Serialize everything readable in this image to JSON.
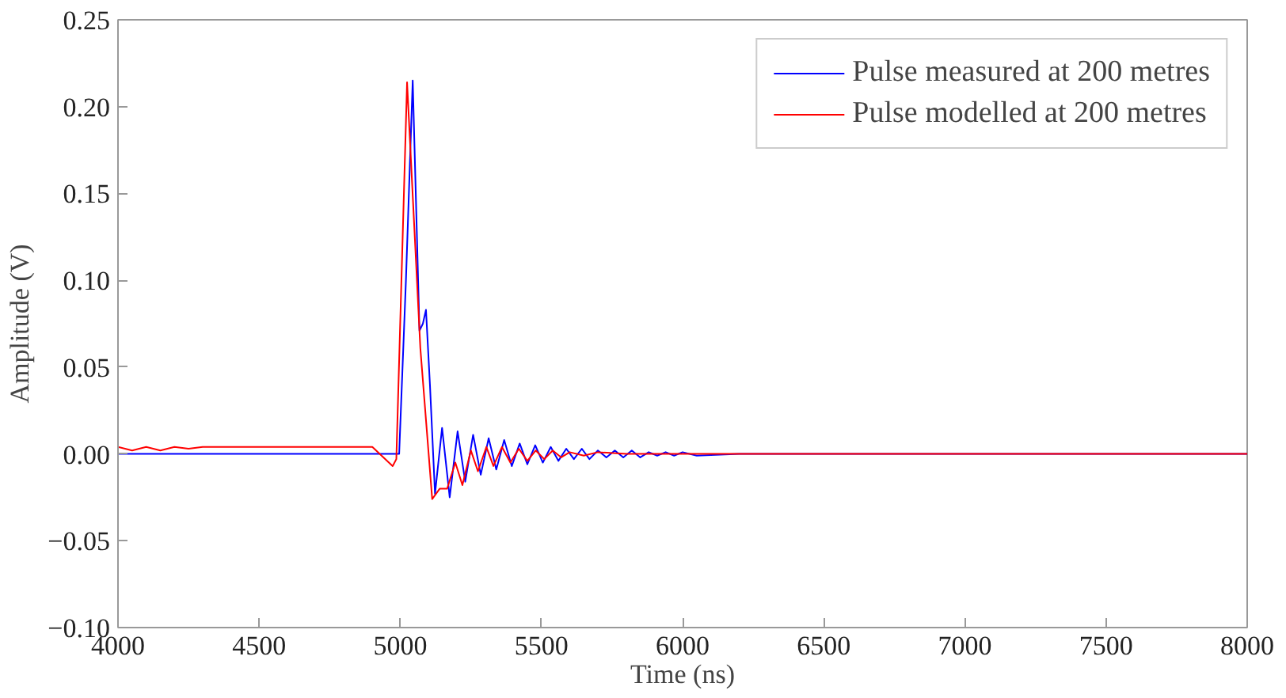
{
  "chart_data": {
    "type": "line",
    "xlabel": "Time (ns)",
    "ylabel": "Amplitude (V)",
    "xlim": [
      4000,
      8000
    ],
    "xticks": [
      4000,
      4500,
      5000,
      5500,
      6000,
      6500,
      7000,
      7500,
      8000
    ],
    "ylim": [
      -0.1,
      0.25
    ],
    "yticks": [
      {
        "value": -0.1,
        "label": "−0.10"
      },
      {
        "value": -0.05,
        "label": "−0.05"
      },
      {
        "value": 0,
        "label": "0.00"
      },
      {
        "value": 0.05,
        "label": "0.05"
      },
      {
        "value": 0.1,
        "label": "0.10"
      },
      {
        "value": 0.15,
        "label": "0.15"
      },
      {
        "value": 0.2,
        "label": "0.20"
      },
      {
        "value": 0.25,
        "label": "0.25"
      }
    ],
    "grid": false,
    "legend": "top right",
    "marker": "none",
    "line_style": "solid",
    "series": [
      {
        "name": "Pulse measured at 200 metres",
        "color": "#0000ff",
        "x": [
          4000,
          4996,
          5020,
          5044,
          5068,
          5080,
          5091,
          5105,
          5123,
          5148,
          5175,
          5203,
          5230,
          5258,
          5285,
          5313,
          5340,
          5368,
          5395,
          5423,
          5450,
          5478,
          5505,
          5533,
          5560,
          5588,
          5615,
          5643,
          5670,
          5700,
          5730,
          5760,
          5790,
          5820,
          5850,
          5880,
          5910,
          5940,
          5970,
          6000,
          6050,
          6200,
          8000
        ],
        "values": [
          0,
          0,
          0.1,
          0.215,
          0.071,
          0.075,
          0.083,
          0.04,
          -0.023,
          0.015,
          -0.025,
          0.013,
          -0.016,
          0.011,
          -0.012,
          0.009,
          -0.009,
          0.008,
          -0.007,
          0.006,
          -0.006,
          0.005,
          -0.005,
          0.004,
          -0.004,
          0.003,
          -0.003,
          0.003,
          -0.003,
          0.002,
          -0.002,
          0.002,
          -0.002,
          0.002,
          -0.002,
          0.001,
          -0.001,
          0.001,
          -0.001,
          0.001,
          -0.001,
          0,
          0
        ]
      },
      {
        "name": "Pulse modelled at 200 metres",
        "color": "#ff0000",
        "x": [
          4000,
          4050,
          4100,
          4150,
          4200,
          4250,
          4300,
          4901,
          4973,
          4986,
          5024,
          5071,
          5113,
          5140,
          5166,
          5195,
          5220,
          5250,
          5275,
          5305,
          5330,
          5360,
          5390,
          5420,
          5450,
          5480,
          5510,
          5540,
          5570,
          5600,
          5650,
          5700,
          5800,
          6000,
          8000
        ],
        "values": [
          0.004,
          0.002,
          0.004,
          0.002,
          0.004,
          0.003,
          0.004,
          0.004,
          -0.007,
          -0.003,
          0.214,
          0.061,
          -0.026,
          -0.02,
          -0.02,
          -0.005,
          -0.018,
          0.002,
          -0.01,
          0.004,
          -0.007,
          0.004,
          -0.005,
          0.003,
          -0.004,
          0.002,
          -0.003,
          0.002,
          -0.002,
          0.001,
          -0.001,
          0.001,
          0,
          0,
          0
        ]
      }
    ]
  }
}
